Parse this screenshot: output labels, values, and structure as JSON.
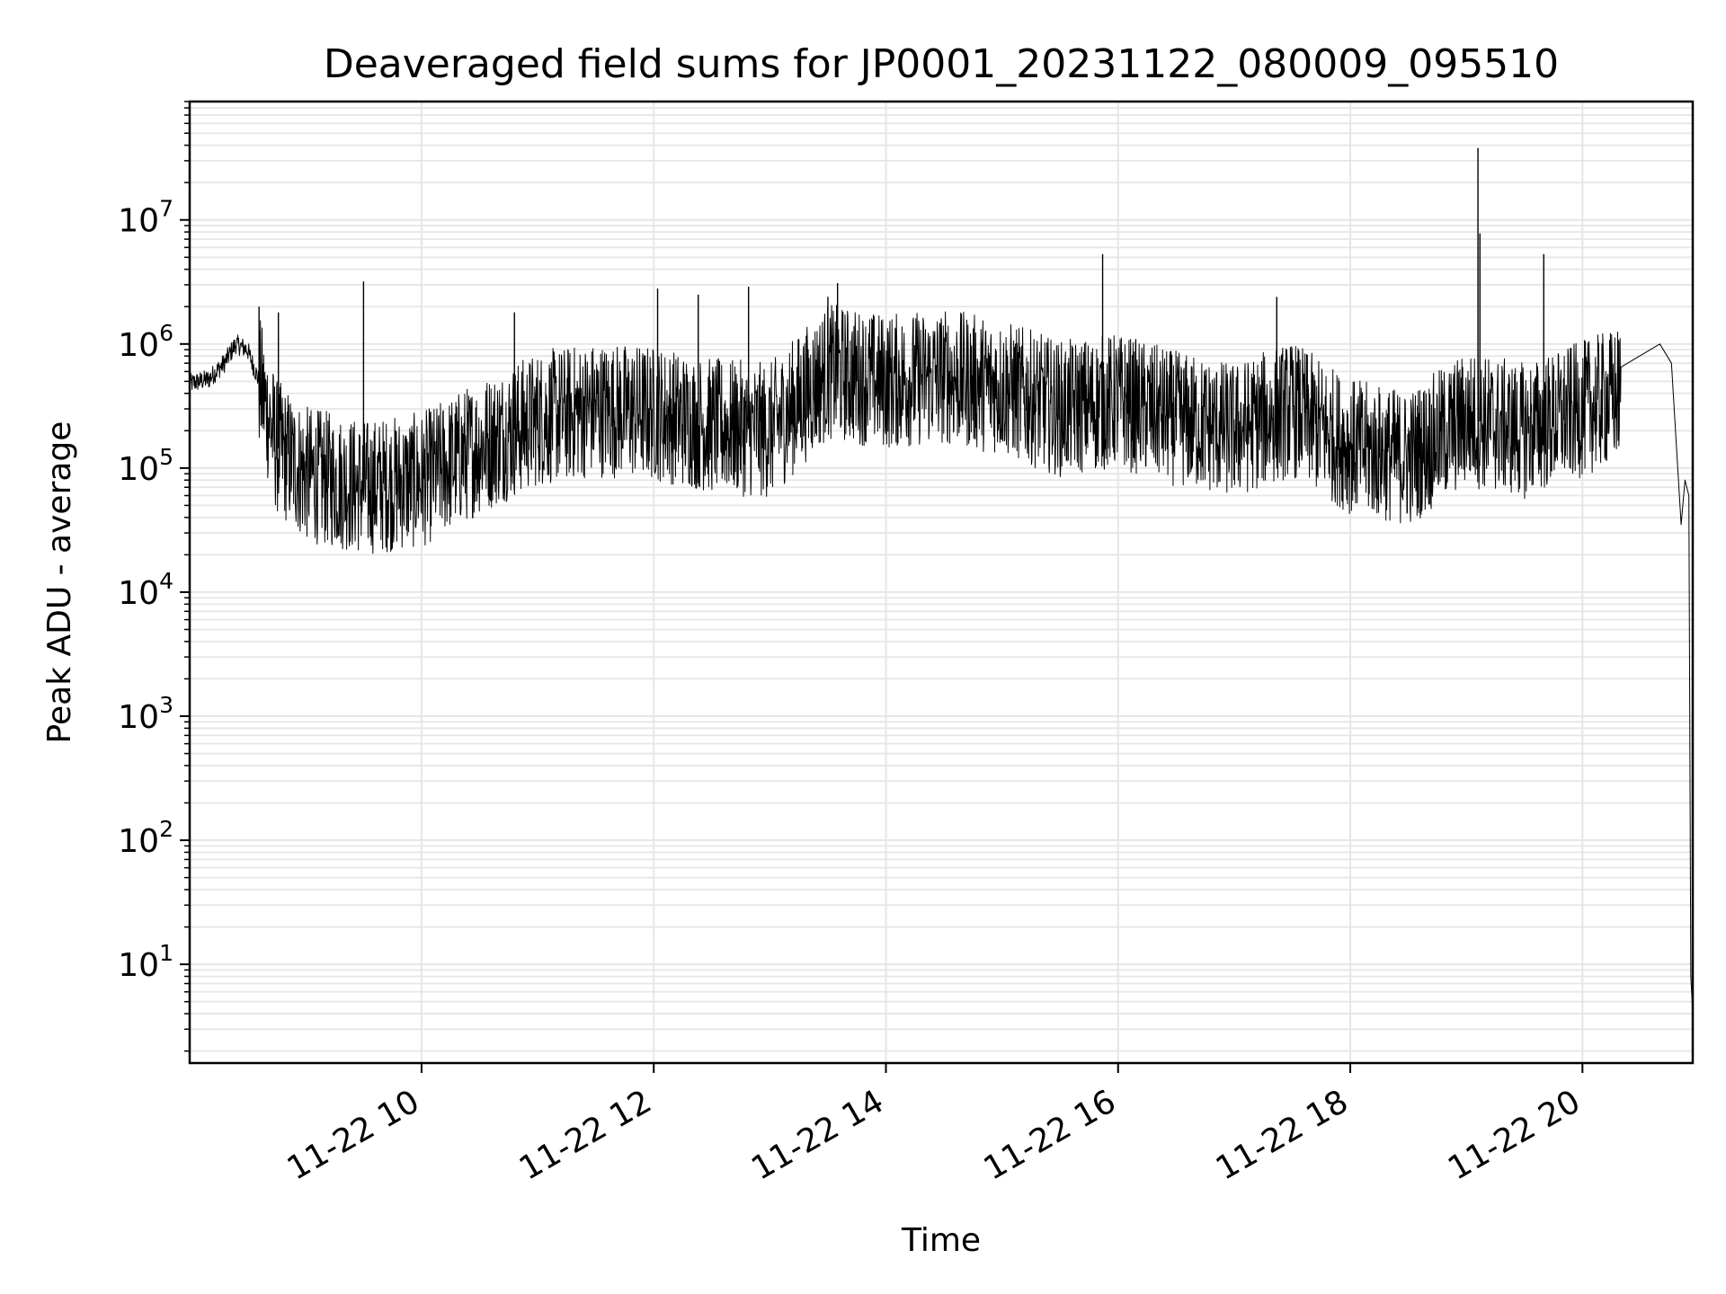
{
  "chart_data": {
    "type": "line",
    "title": "Deaveraged field sums for JP0001_20231122_080009_095510",
    "xlabel": "Time",
    "ylabel": "Peak ADU - average",
    "x_range": [
      "2023-11-22T08:00:09",
      "2023-11-22T20:57:00"
    ],
    "x_ticks": [
      {
        "time": "2023-11-22T10:00:00",
        "label": "11-22 10"
      },
      {
        "time": "2023-11-22T12:00:00",
        "label": "11-22 12"
      },
      {
        "time": "2023-11-22T14:00:00",
        "label": "11-22 14"
      },
      {
        "time": "2023-11-22T16:00:00",
        "label": "11-22 16"
      },
      {
        "time": "2023-11-22T18:00:00",
        "label": "11-22 18"
      },
      {
        "time": "2023-11-22T20:00:00",
        "label": "11-22 20"
      }
    ],
    "y_scale": "log",
    "ylim": [
      1.6,
      90000000
    ],
    "y_ticks": [
      {
        "value": 10,
        "base": "10",
        "exp": "1"
      },
      {
        "value": 100,
        "base": "10",
        "exp": "2"
      },
      {
        "value": 1000,
        "base": "10",
        "exp": "3"
      },
      {
        "value": 10000,
        "base": "10",
        "exp": "4"
      },
      {
        "value": 100000,
        "base": "10",
        "exp": "5"
      },
      {
        "value": 1000000,
        "base": "10",
        "exp": "6"
      },
      {
        "value": 10000000,
        "base": "10",
        "exp": "7"
      }
    ],
    "grid": true,
    "line_color": "#000000",
    "grid_color": "#e6e6e6",
    "series": [
      {
        "points": [
          [
            "2023-11-22T08:00:09",
            480000
          ],
          [
            "2023-11-22T08:10:00",
            520000
          ],
          [
            "2023-11-22T08:18:00",
            700000
          ],
          [
            "2023-11-22T08:24:00",
            1000000
          ],
          [
            "2023-11-22T08:30:00",
            900000
          ],
          [
            "2023-11-22T08:36:00",
            500000
          ],
          [
            "2023-11-22T08:45:00",
            150000
          ],
          [
            "2023-11-22T09:00:00",
            90000
          ],
          [
            "2023-11-22T09:30:00",
            70000
          ],
          [
            "2023-11-22T10:00:00",
            80000
          ],
          [
            "2023-11-22T10:30:00",
            150000
          ],
          [
            "2023-11-22T11:00:00",
            250000
          ],
          [
            "2023-11-22T11:30:00",
            300000
          ],
          [
            "2023-11-22T12:00:00",
            280000
          ],
          [
            "2023-11-22T12:30:00",
            220000
          ],
          [
            "2023-11-22T13:00:00",
            200000
          ],
          [
            "2023-11-22T13:30:00",
            600000
          ],
          [
            "2023-11-22T14:00:00",
            500000
          ],
          [
            "2023-11-22T14:30:00",
            550000
          ],
          [
            "2023-11-22T15:00:00",
            450000
          ],
          [
            "2023-11-22T15:30:00",
            300000
          ],
          [
            "2023-11-22T16:00:00",
            350000
          ],
          [
            "2023-11-22T16:30:00",
            250000
          ],
          [
            "2023-11-22T17:00:00",
            200000
          ],
          [
            "2023-11-22T17:30:00",
            300000
          ],
          [
            "2023-11-22T18:00:00",
            150000
          ],
          [
            "2023-11-22T18:30:00",
            120000
          ],
          [
            "2023-11-22T19:00:00",
            250000
          ],
          [
            "2023-11-22T19:30:00",
            200000
          ],
          [
            "2023-11-22T20:00:00",
            300000
          ],
          [
            "2023-11-22T20:20:00",
            400000
          ],
          [
            "2023-11-22T20:40:00",
            1000000
          ],
          [
            "2023-11-22T20:46:00",
            700000
          ],
          [
            "2023-11-22T20:51:00",
            35000
          ],
          [
            "2023-11-22T20:53:00",
            80000
          ],
          [
            "2023-11-22T20:55:00",
            60000
          ],
          [
            "2023-11-22T20:56:00",
            8
          ],
          [
            "2023-11-22T20:57:00",
            4
          ]
        ],
        "spikes": [
          [
            "2023-11-22T08:36:00",
            2000000
          ],
          [
            "2023-11-22T08:46:00",
            1800000
          ],
          [
            "2023-11-22T09:30:00",
            3200000
          ],
          [
            "2023-11-22T10:48:00",
            1800000
          ],
          [
            "2023-11-22T12:02:00",
            2800000
          ],
          [
            "2023-11-22T12:23:00",
            2500000
          ],
          [
            "2023-11-22T12:49:00",
            2900000
          ],
          [
            "2023-11-22T13:30:00",
            2400000
          ],
          [
            "2023-11-22T13:35:00",
            3100000
          ],
          [
            "2023-11-22T15:52:00",
            5300000
          ],
          [
            "2023-11-22T17:22:00",
            2400000
          ],
          [
            "2023-11-22T19:06:00",
            38000000
          ],
          [
            "2023-11-22T19:07:00",
            7800000
          ],
          [
            "2023-11-22T19:40:00",
            5300000
          ]
        ]
      }
    ]
  }
}
